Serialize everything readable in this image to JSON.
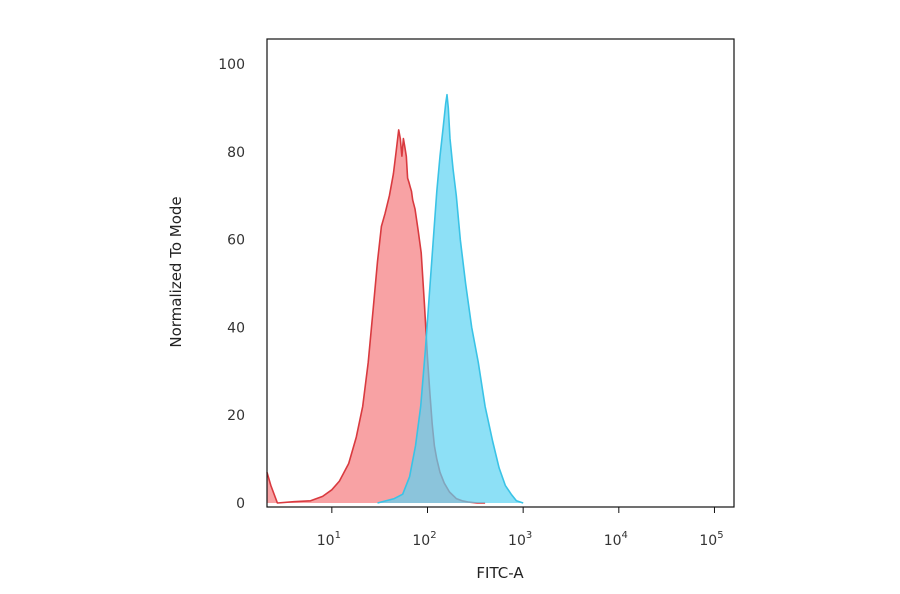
{
  "chart_data": {
    "type": "area",
    "title": "",
    "xlabel": "FITC-A",
    "ylabel": "Normalized To Mode",
    "x_scale": "log",
    "xlim": [
      2.1,
      160000
    ],
    "ylim": [
      0,
      100
    ],
    "grid": false,
    "x_ticks": [
      {
        "base": "10",
        "exp": "1",
        "value": 10
      },
      {
        "base": "10",
        "exp": "2",
        "value": 100
      },
      {
        "base": "10",
        "exp": "3",
        "value": 1000
      },
      {
        "base": "10",
        "exp": "4",
        "value": 10000
      },
      {
        "base": "10",
        "exp": "5",
        "value": 100000
      }
    ],
    "y_ticks": [
      "0",
      "20",
      "40",
      "60",
      "80",
      "100"
    ],
    "series": [
      {
        "color": "#d93a3f",
        "fill": "#f79294",
        "x": [
          2.1,
          2.3,
          2.7,
          4,
          6,
          8,
          10,
          12,
          15,
          18,
          21,
          24,
          27,
          30,
          33,
          36,
          40,
          44,
          47,
          50,
          52,
          54,
          56,
          58,
          60,
          62,
          64,
          66,
          68,
          70,
          74,
          80,
          86,
          93,
          100,
          106,
          112,
          118,
          125,
          135,
          150,
          170,
          200,
          230,
          270,
          330,
          400
        ],
        "y": [
          7,
          4,
          0,
          0.3,
          0.5,
          1.5,
          3,
          5,
          9,
          15,
          22,
          32,
          44,
          55,
          63,
          66,
          70,
          75,
          80,
          85,
          83,
          79,
          83,
          81,
          79,
          74,
          73,
          72,
          71,
          69,
          67,
          62,
          57,
          45,
          33,
          25,
          18,
          13,
          10,
          7,
          4.5,
          2.5,
          1,
          0.5,
          0.2,
          0,
          0
        ]
      },
      {
        "color": "#3ac3e6",
        "fill": "#5cd3f2",
        "x": [
          30,
          45,
          55,
          65,
          75,
          85,
          95,
          105,
          115,
          125,
          135,
          145,
          150,
          155,
          160,
          165,
          172,
          185,
          200,
          220,
          250,
          290,
          340,
          400,
          480,
          560,
          650,
          750,
          850,
          1000
        ],
        "y": [
          0,
          1,
          2,
          6,
          13,
          22,
          35,
          48,
          60,
          71,
          79,
          85,
          88,
          91,
          93,
          90,
          83,
          76,
          70,
          60,
          50,
          40,
          32,
          22,
          14,
          8,
          4,
          2,
          0.5,
          0
        ]
      }
    ]
  }
}
